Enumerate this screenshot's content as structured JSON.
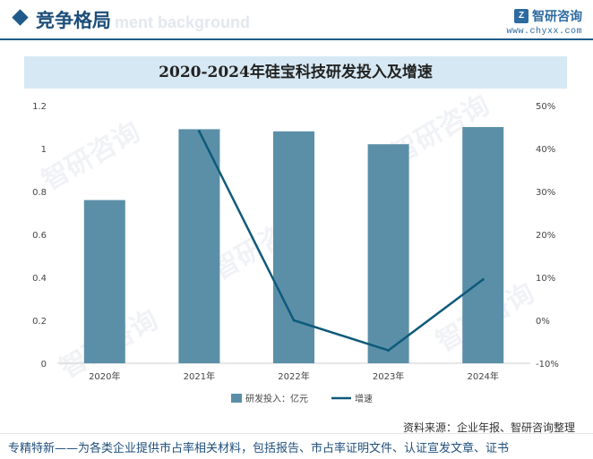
{
  "header": {
    "section_title": "竞争格局",
    "ghost_text": "ment background",
    "logo_name": "智研咨询",
    "logo_url": "www.chyxx.com"
  },
  "colors": {
    "bar": "#5b8fa8",
    "line": "#0e5a7a",
    "brand": "#1f5b8a"
  },
  "watermark": "智研咨询",
  "chart_data": {
    "type": "bar+line",
    "title": "2020-2024年硅宝科技研发投入及增速",
    "categories": [
      "2020年",
      "2021年",
      "2022年",
      "2023年",
      "2024年"
    ],
    "series": [
      {
        "name": "研发投入：亿元",
        "type": "bar",
        "axis": "left",
        "values": [
          0.76,
          1.09,
          1.08,
          1.02,
          1.1
        ]
      },
      {
        "name": "增速",
        "type": "line",
        "axis": "right",
        "values": [
          null,
          44,
          0,
          -7,
          9.5
        ]
      }
    ],
    "y_left": {
      "min": 0,
      "max": 1.2,
      "ticks": [
        "0",
        "0.2",
        "0.4",
        "0.6",
        "0.8",
        "1",
        "1.2"
      ]
    },
    "y_right": {
      "min": -10,
      "max": 50,
      "ticks": [
        "-10%",
        "0%",
        "10%",
        "20%",
        "30%",
        "40%",
        "50%"
      ]
    },
    "legend": {
      "position": "bottom"
    }
  },
  "source": "资料来源：企业年报、智研咨询整理",
  "footer": "专精特新——为各类企业提供市占率相关材料，包括报告、市占率证明文件、认证宣发文章、证书"
}
